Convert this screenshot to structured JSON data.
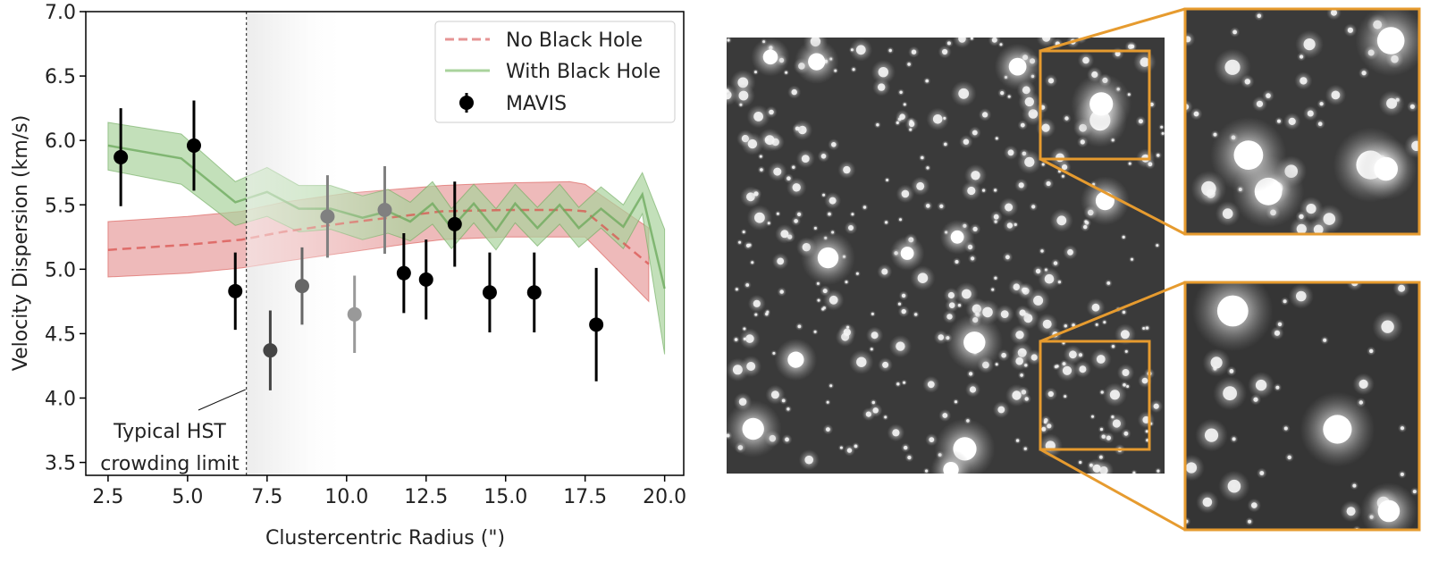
{
  "chart_data": {
    "type": "line",
    "xlabel": "Clustercentric Radius (\")",
    "ylabel": "Velocity Dispersion (km/s)",
    "xlim": [
      1.8,
      20.6
    ],
    "ylim": [
      3.4,
      7.0
    ],
    "x_ticks": [
      "2.5",
      "5.0",
      "7.5",
      "10.0",
      "12.5",
      "15.0",
      "17.5",
      "20.0"
    ],
    "y_ticks": [
      "3.5",
      "4.0",
      "4.5",
      "5.0",
      "5.5",
      "6.0",
      "6.5",
      "7.0"
    ],
    "grid": false,
    "legend_position": "top-right",
    "legend": [
      {
        "label": "No Black Hole",
        "style": "dashed-line",
        "color": "#e06666"
      },
      {
        "label": "With Black Hole",
        "style": "line",
        "color": "#8cc47a"
      },
      {
        "label": "MAVIS",
        "style": "errorbar-marker",
        "color": "#000000"
      }
    ],
    "series": [
      {
        "name": "No Black Hole",
        "color": "#d9534f",
        "x": [
          2.5,
          5.0,
          6.7,
          8.0,
          10.0,
          12.0,
          13.0,
          15.0,
          17.0,
          17.5,
          19.5
        ],
        "y": [
          5.15,
          5.19,
          5.23,
          5.29,
          5.36,
          5.42,
          5.45,
          5.46,
          5.46,
          5.45,
          5.04
        ],
        "upper": [
          5.37,
          5.41,
          5.45,
          5.52,
          5.59,
          5.63,
          5.65,
          5.67,
          5.68,
          5.66,
          5.32
        ],
        "lower": [
          4.94,
          4.97,
          5.01,
          5.06,
          5.13,
          5.2,
          5.23,
          5.25,
          5.25,
          5.25,
          4.75
        ]
      },
      {
        "name": "With Black Hole",
        "color": "#79b46a",
        "x": [
          2.5,
          4.8,
          6.5,
          7.5,
          8.5,
          9.5,
          10.5,
          11.3,
          12.0,
          12.7,
          13.3,
          14.0,
          14.7,
          15.3,
          16.0,
          16.7,
          17.3,
          18.0,
          18.7,
          19.3,
          20.0
        ],
        "y": [
          5.96,
          5.86,
          5.52,
          5.6,
          5.47,
          5.47,
          5.4,
          5.45,
          5.37,
          5.51,
          5.32,
          5.51,
          5.3,
          5.51,
          5.32,
          5.5,
          5.32,
          5.47,
          5.33,
          5.58,
          4.85
        ],
        "upper": [
          6.14,
          6.05,
          5.68,
          5.79,
          5.65,
          5.65,
          5.57,
          5.62,
          5.52,
          5.68,
          5.47,
          5.66,
          5.47,
          5.66,
          5.48,
          5.66,
          5.48,
          5.64,
          5.5,
          5.75,
          5.31
        ],
        "lower": [
          5.77,
          5.66,
          5.34,
          5.41,
          5.29,
          5.31,
          5.23,
          5.28,
          5.22,
          5.35,
          5.16,
          5.36,
          5.15,
          5.36,
          5.18,
          5.35,
          5.17,
          5.32,
          5.16,
          5.43,
          4.34
        ]
      }
    ],
    "mavis_points": {
      "name": "MAVIS",
      "x": [
        2.9,
        5.2,
        6.5,
        7.6,
        8.6,
        9.4,
        10.25,
        11.2,
        11.8,
        12.5,
        13.4,
        14.5,
        15.9,
        17.85
      ],
      "y": [
        5.87,
        5.96,
        4.83,
        4.37,
        4.87,
        5.41,
        4.65,
        5.46,
        4.97,
        4.92,
        5.35,
        4.82,
        4.82,
        4.57
      ],
      "yerr": [
        0.38,
        0.35,
        0.3,
        0.31,
        0.3,
        0.32,
        0.3,
        0.34,
        0.31,
        0.31,
        0.33,
        0.31,
        0.31,
        0.44
      ],
      "shade": [
        "#000000",
        "#000000",
        "#000000",
        "#444444",
        "#666666",
        "#808080",
        "#999999",
        "#808080",
        "#000000",
        "#000000",
        "#000000",
        "#000000",
        "#000000",
        "#000000"
      ]
    },
    "crowding_limit": {
      "x": 6.85,
      "annotation": [
        "Typical HST",
        "crowding limit"
      ]
    }
  },
  "image_panel": {
    "main_image": "simulated MAVIS star field",
    "insets": [
      "zoom-top-right-region",
      "zoom-bottom-right-region"
    ],
    "inset_frame_color": "#e69b2f"
  }
}
